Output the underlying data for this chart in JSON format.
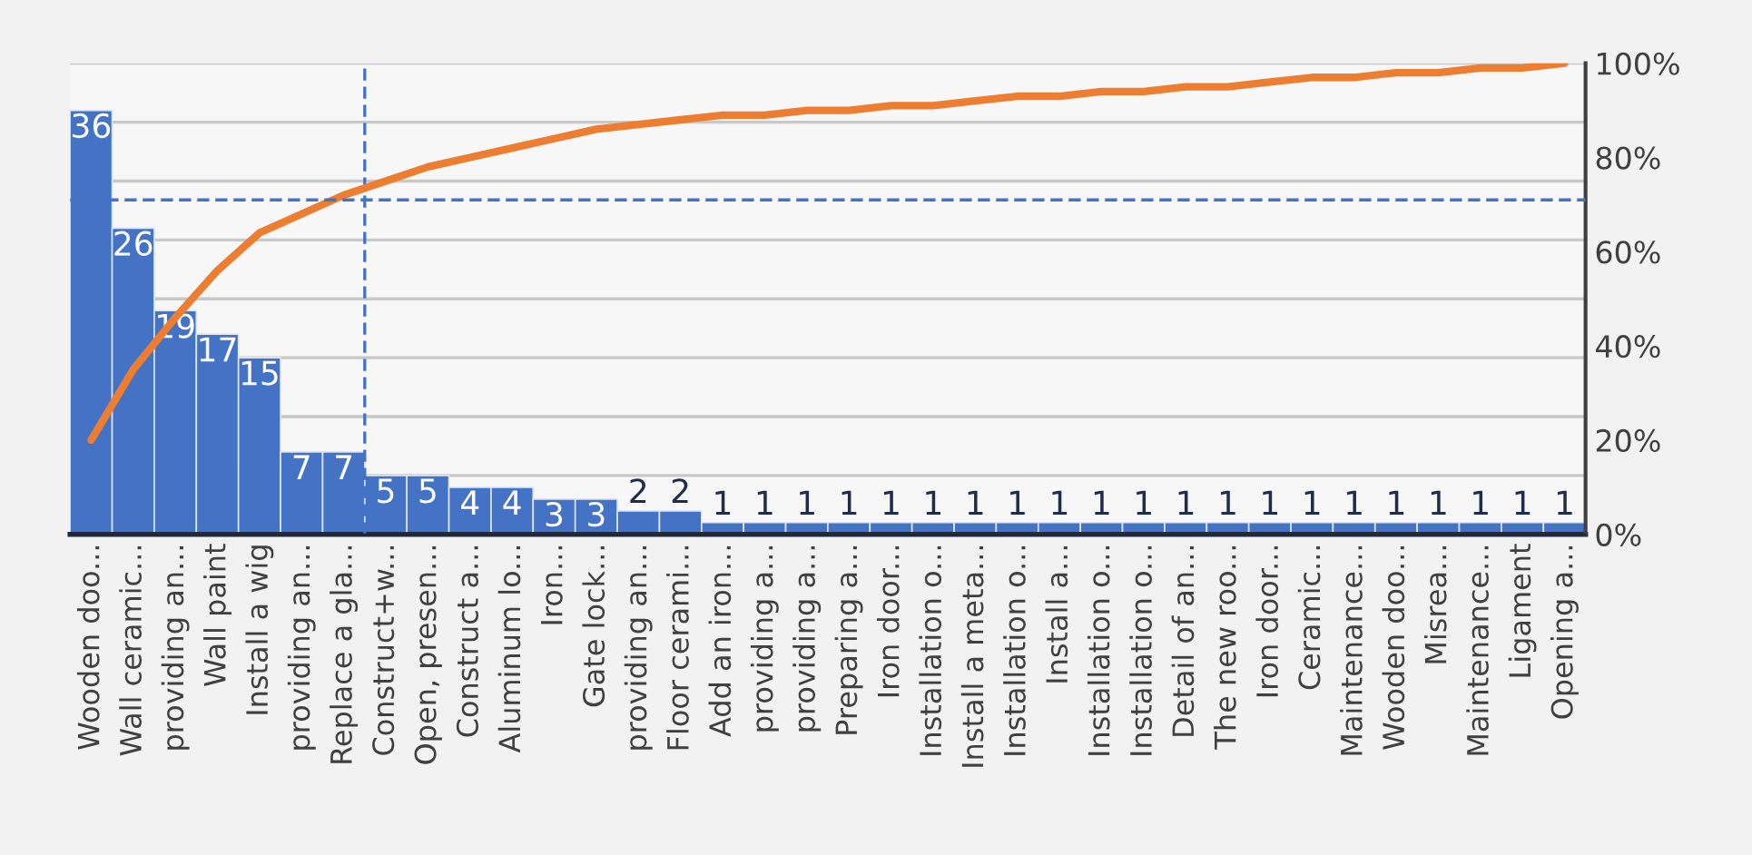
{
  "chart_data": {
    "type": "bar",
    "categories": [
      "Wooden doo...",
      "Wall ceramic...",
      "providing an...",
      "Wall paint",
      "Install a wig",
      "providing an...",
      "Replace a gla...",
      "Construct+w...",
      "Open, presen...",
      "Construct a...",
      "Aluminum lo...",
      "Iron...",
      "Gate lock...",
      "providing an...",
      "Floor cerami...",
      "Add an iron...",
      "providing a...",
      "providing a...",
      "Preparing a...",
      "Iron door...",
      "Installation o...",
      "Install a meta...",
      "Installation o...",
      "Install a...",
      "Installation o...",
      "Installation o...",
      "Detail of an...",
      "The new roo...",
      "Iron door...",
      "Ceramic...",
      "Maintenance...",
      "Wooden doo...",
      "Misrea...",
      "Maintenance...",
      "Ligament",
      "Opening a..."
    ],
    "series": [
      {
        "color": "#4472c4",
        "values": [
          36,
          26,
          19,
          17,
          15,
          7,
          7,
          5,
          5,
          4,
          4,
          3,
          3,
          2,
          2,
          1,
          1,
          1,
          1,
          1,
          1,
          1,
          1,
          1,
          1,
          1,
          1,
          1,
          1,
          1,
          1,
          1,
          1,
          1,
          1,
          1
        ],
        "value_labels": [
          "36",
          "26",
          "19",
          "17",
          "15",
          "7",
          "7",
          "5",
          "5",
          "4",
          "4",
          "3",
          "3",
          "2",
          "2",
          "1",
          "1",
          "1",
          "1",
          "1",
          "1",
          "1",
          "1",
          "1",
          "1",
          "1",
          "1",
          "1",
          "1",
          "1",
          "1",
          "1",
          "1",
          "1",
          "1",
          "1"
        ]
      },
      {
        "type": "line",
        "axis": "y2",
        "color": "#ed7d31",
        "values": [
          20,
          35,
          46,
          56,
          64,
          68,
          72,
          75,
          78,
          80,
          82,
          84,
          86,
          87,
          88,
          89,
          89,
          90,
          90,
          91,
          91,
          92,
          93,
          93,
          94,
          94,
          95,
          95,
          96,
          97,
          97,
          98,
          98,
          99,
          99,
          100
        ]
      }
    ],
    "ylim": [
      0,
      40
    ],
    "yticks": [
      {
        "value": 0,
        "label": null
      },
      {
        "value": 5,
        "label": null
      },
      {
        "value": 10,
        "label": null
      },
      {
        "value": 15,
        "label": null
      },
      {
        "value": 20,
        "label": null
      },
      {
        "value": 25,
        "label": null
      },
      {
        "value": 30,
        "label": null
      },
      {
        "value": 35,
        "label": null
      },
      {
        "value": 40,
        "label": null
      }
    ],
    "y2lim": [
      0,
      100
    ],
    "y2ticks": [
      {
        "value": 0,
        "label": "0%"
      },
      {
        "value": 20,
        "label": "20%"
      },
      {
        "value": 40,
        "label": "40%"
      },
      {
        "value": 60,
        "label": "60%"
      },
      {
        "value": 80,
        "label": "80%"
      },
      {
        "value": 100,
        "label": "100%"
      }
    ],
    "grid": "y",
    "ref_lines": [
      {
        "axis": "y2",
        "value": 71,
        "color": "#4472c4",
        "line_style": "dashed"
      },
      {
        "axis": "x",
        "value": "Construct+w...",
        "color": "#4472c4",
        "line_style": "dashed"
      }
    ]
  }
}
